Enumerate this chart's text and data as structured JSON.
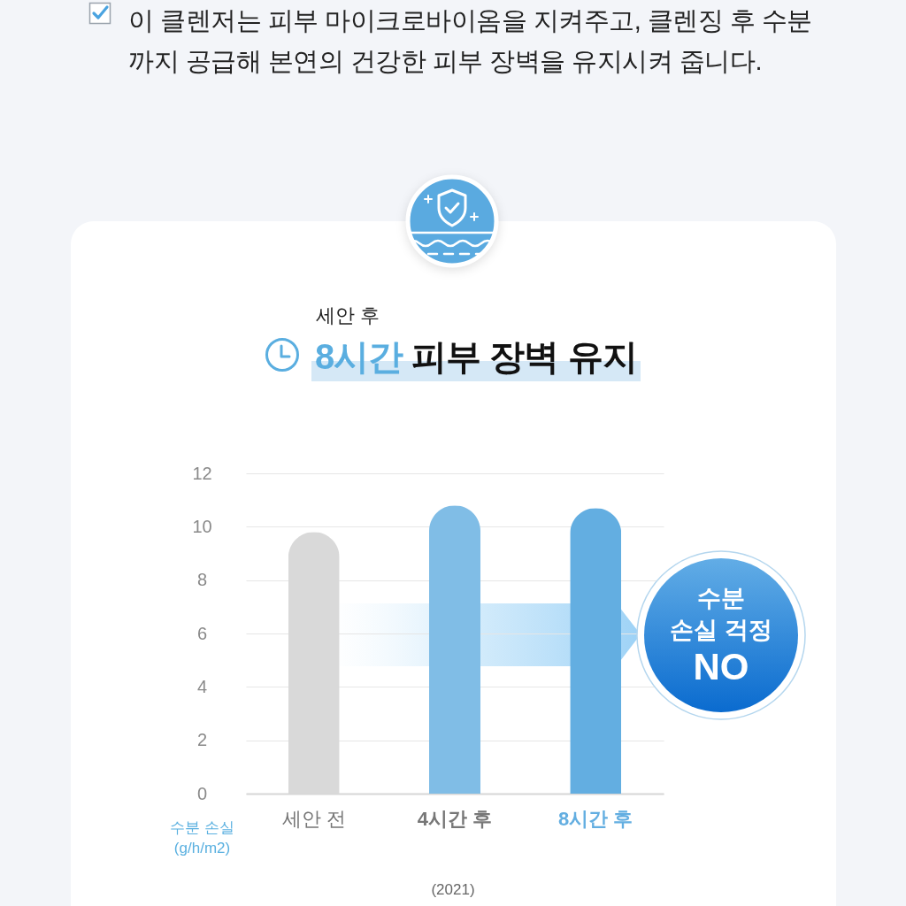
{
  "chart_data": {
    "type": "bar",
    "title": "8시간 피부 장벽 유지",
    "subtitle": "세안 후",
    "ylabel": "수분 손실 (g/h/m2)",
    "categories": [
      "세안 전",
      "4시간 후",
      "8시간 후"
    ],
    "values": [
      9.8,
      10.8,
      10.7
    ],
    "colors": [
      "#d9d9d9",
      "#80bde6",
      "#63aee1"
    ],
    "ylim": [
      0,
      12
    ],
    "yticks": [
      0,
      2,
      4,
      6,
      8,
      10,
      12
    ],
    "grid": "y",
    "annotations": [
      "이 클렌저는 피부 마이크로바이옴을 지켜주고, 클렌징 후 수분까지 공급해 본연의 건강한 피부 장벽을 유지시켜 줍니다.",
      "수분\n손실 걱정\nNO",
      "(2021)"
    ]
  }
}
